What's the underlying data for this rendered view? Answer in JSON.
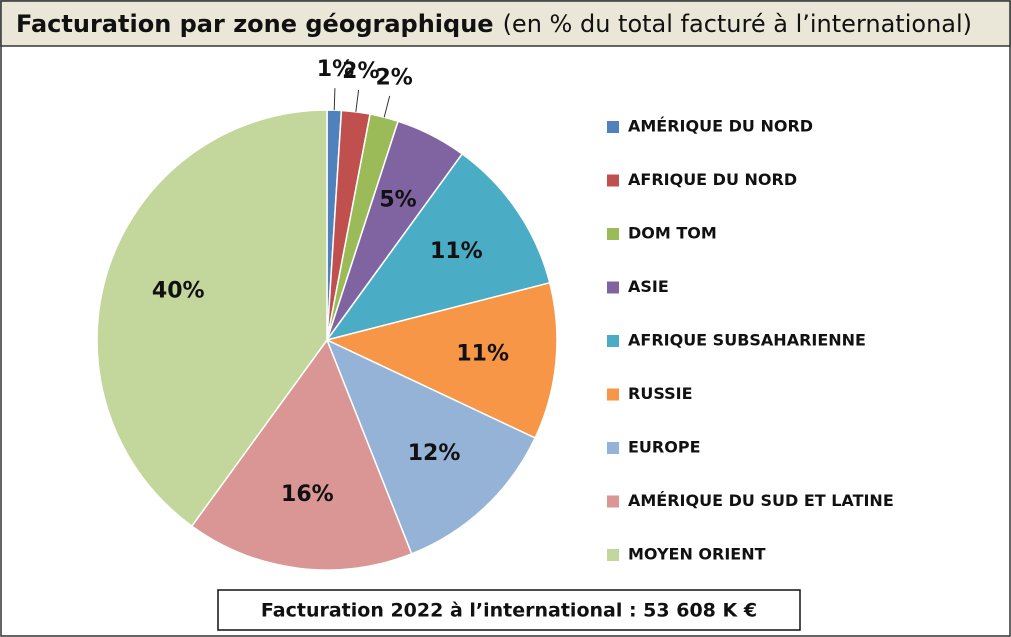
{
  "chart_data": {
    "type": "pie",
    "title": "Facturation par zone géographique",
    "subtitle": "(en % du total facturé à l’international)",
    "categories": [
      "AMÉRIQUE DU NORD",
      "AFRIQUE DU NORD",
      "DOM TOM",
      "ASIE",
      "AFRIQUE SUBSAHARIENNE",
      "RUSSIE",
      "EUROPE",
      "AMÉRIQUE DU SUD ET LATINE",
      "MOYEN ORIENT"
    ],
    "values": [
      1,
      2,
      2,
      5,
      11,
      11,
      12,
      16,
      40
    ],
    "value_labels": [
      "1%",
      "2%",
      "2%",
      "5%",
      "11%",
      "11%",
      "12%",
      "16%",
      "40%"
    ],
    "colors": [
      "#4f81bd",
      "#c0504d",
      "#9bbb59",
      "#8064a2",
      "#4bacc6",
      "#f79646",
      "#95b3d7",
      "#d99694",
      "#c3d69b"
    ],
    "legend": "right",
    "annotation": "Facturation 2022 à l’international : 53 608 K €"
  }
}
